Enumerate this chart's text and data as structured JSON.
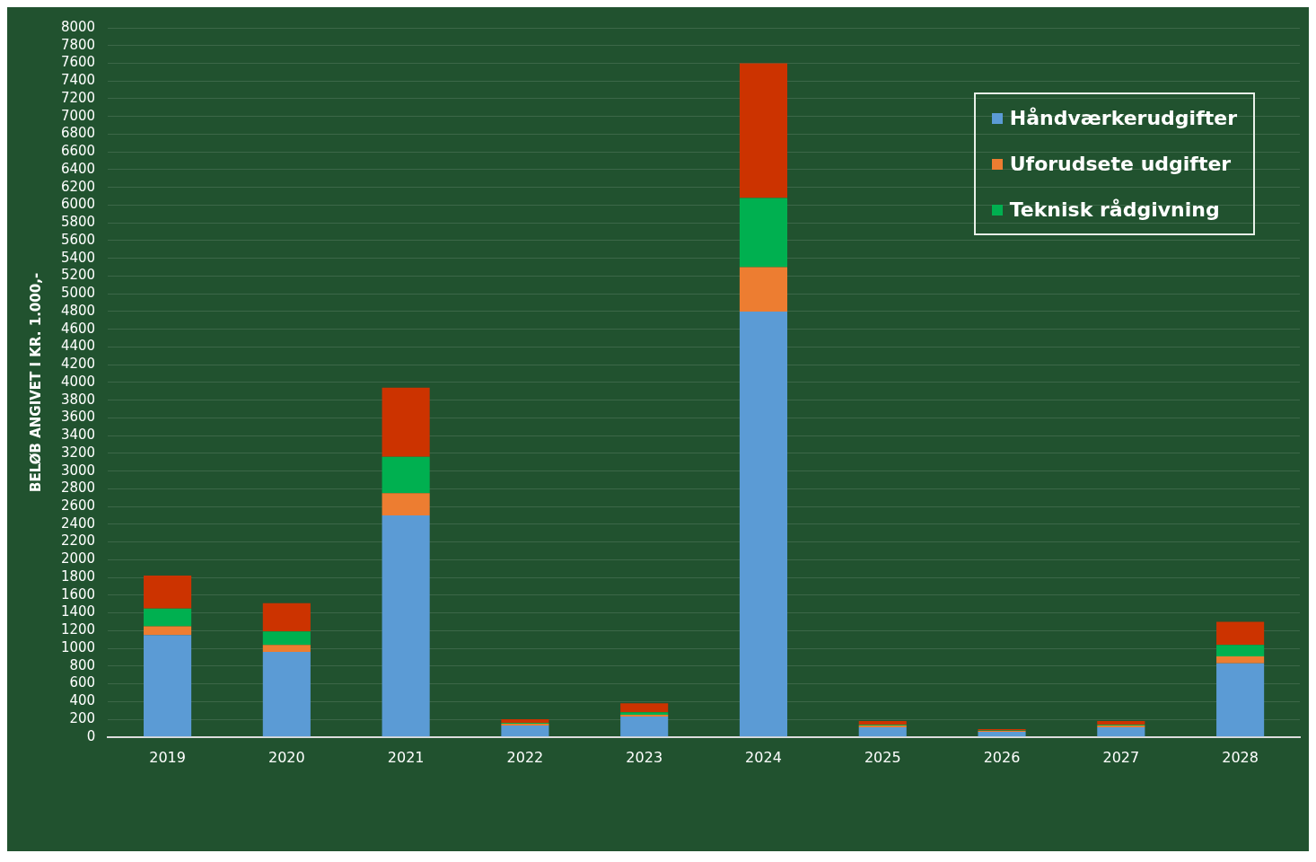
{
  "chart_data": {
    "type": "bar",
    "stacked": true,
    "ylabel": "BELØB ANGIVET I KR. 1.000,-",
    "categories": [
      "2019",
      "2020",
      "2021",
      "2022",
      "2023",
      "2024",
      "2025",
      "2026",
      "2027",
      "2028"
    ],
    "series": [
      {
        "name": "Håndværkerudgifter",
        "color": "#5b9bd5",
        "values": [
          1150,
          960,
          2500,
          130,
          230,
          4800,
          110,
          60,
          110,
          830
        ]
      },
      {
        "name": "Uforudsete udgifter",
        "color": "#ed7d31",
        "values": [
          100,
          80,
          250,
          20,
          20,
          500,
          20,
          10,
          20,
          80
        ]
      },
      {
        "name": "Teknisk rådgivning",
        "color": "#00b050",
        "values": [
          200,
          150,
          410,
          10,
          30,
          780,
          10,
          5,
          10,
          130
        ]
      },
      {
        "color": "#cc3300",
        "values": [
          370,
          320,
          780,
          40,
          100,
          1520,
          40,
          15,
          40,
          260
        ]
      }
    ],
    "ylim": [
      0,
      8000
    ],
    "yticks": [
      0,
      200,
      400,
      600,
      800,
      1000,
      1200,
      1400,
      1600,
      1800,
      2000,
      2200,
      2400,
      2600,
      2800,
      3000,
      3200,
      3400,
      3600,
      3800,
      4000,
      4200,
      4400,
      4600,
      4800,
      5000,
      5200,
      5400,
      5600,
      5800,
      6000,
      6200,
      6400,
      6600,
      6800,
      7000,
      7200,
      7400,
      7600,
      7800,
      8000
    ],
    "grid": "y",
    "legend": "top right"
  }
}
